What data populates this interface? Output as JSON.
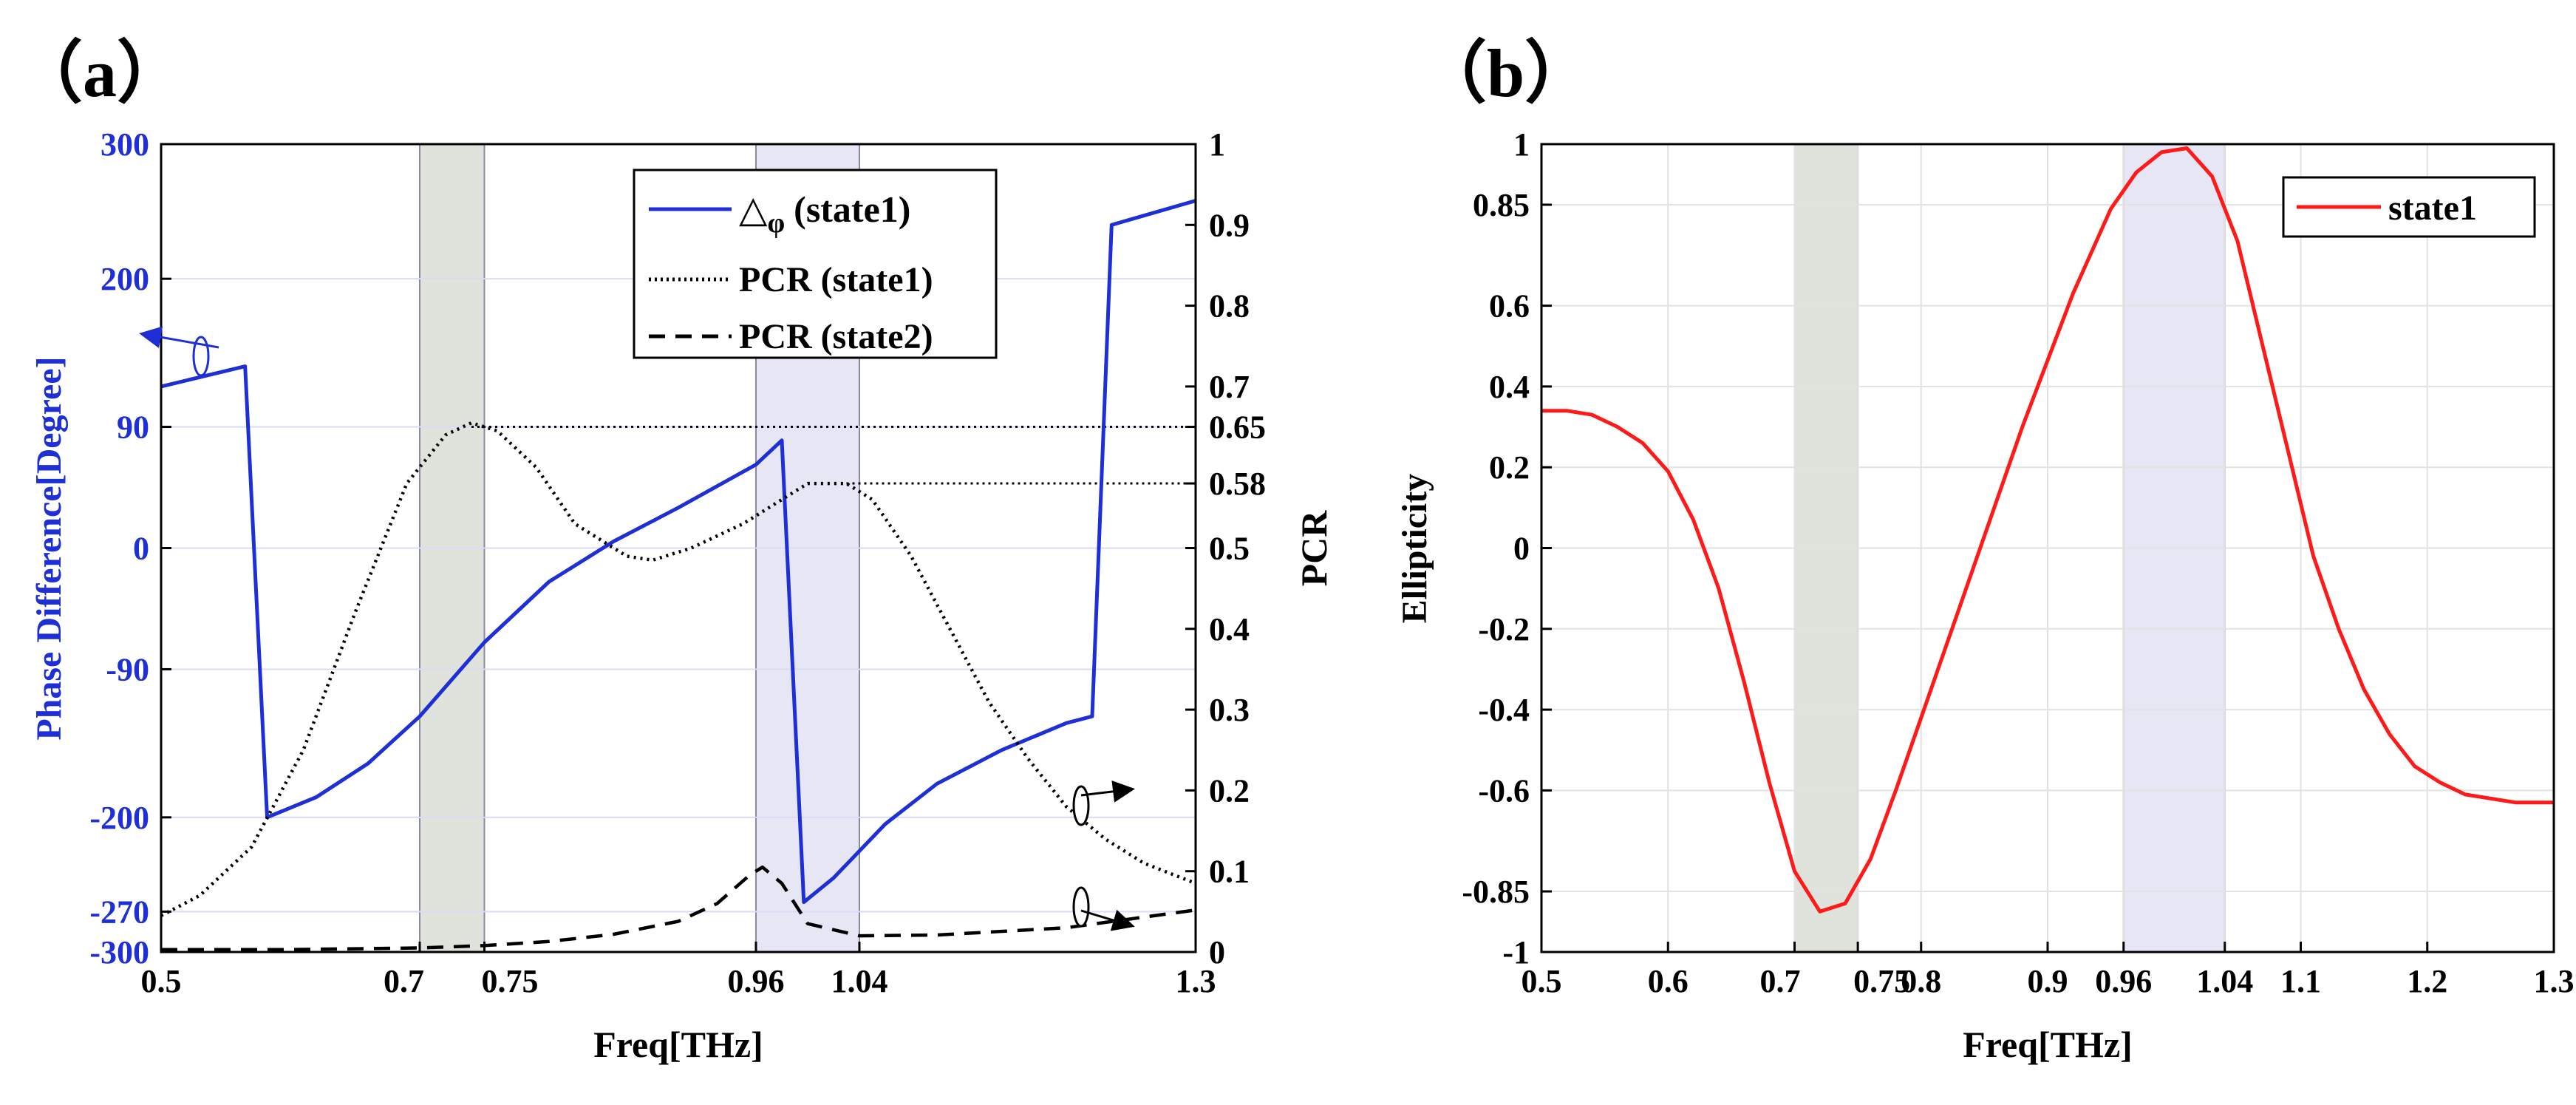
{
  "colors": {
    "blue": "#1f2fd6",
    "red": "#ff1a1a",
    "black": "#000000",
    "band_green": "#dfe3dc",
    "band_purple": "#e6e6f5",
    "grid_blue": "#d8dcf4",
    "grid_gray": "#e2e2e2"
  },
  "chart_data": [
    {
      "panel_label": "（a）",
      "type": "line",
      "xlabel": "Freq[THz]",
      "ylabel_left": "Phase Difference[Degree]",
      "ylabel_right": "PCR",
      "xlim": [
        0.5,
        1.3
      ],
      "ylim_left": [
        -300,
        300
      ],
      "ylim_right": [
        0,
        1
      ],
      "xticks": [
        "0.5",
        "0.7",
        "0.75",
        "0.96",
        "1.04",
        "1.3"
      ],
      "xtick_values": [
        0.5,
        0.7,
        0.75,
        0.96,
        1.04,
        1.3
      ],
      "yticks_left": [
        "300",
        "200",
        "90",
        "0",
        "-90",
        "-200",
        "-270",
        "-300"
      ],
      "ytick_values_left": [
        300,
        200,
        90,
        0,
        -90,
        -200,
        -270,
        -300
      ],
      "yticks_right": [
        "1",
        "0.9",
        "0.8",
        "0.7",
        "0.65",
        "0.58",
        "0.5",
        "0.4",
        "0.3",
        "0.2",
        "0.1",
        "0"
      ],
      "ytick_values_right": [
        1,
        0.9,
        0.8,
        0.7,
        0.65,
        0.58,
        0.5,
        0.4,
        0.3,
        0.2,
        0.1,
        0
      ],
      "shaded_bands": [
        {
          "x0": 0.7,
          "x1": 0.75,
          "color": "green"
        },
        {
          "x0": 0.96,
          "x1": 1.04,
          "color": "purple"
        }
      ],
      "reference_lines": [
        {
          "y_right": 0.65,
          "x0": 0.74,
          "x1": 1.3
        },
        {
          "y_right": 0.58,
          "x0": 1.03,
          "x1": 1.3
        }
      ],
      "legend": [
        "△",
        "φ",
        "(state1)",
        "PCR (state1)",
        "PCR (state2)"
      ],
      "series": [
        {
          "name": "△φ (state1)",
          "axis": "left",
          "style": "solid",
          "color": "blue",
          "x": [
            0.5,
            0.565,
            0.582,
            0.62,
            0.66,
            0.7,
            0.75,
            0.8,
            0.85,
            0.9,
            0.96,
            0.98,
            0.997,
            1.02,
            1.06,
            1.1,
            1.15,
            1.2,
            1.22,
            1.235,
            1.3
          ],
          "y": [
            120,
            135,
            -200,
            -185,
            -160,
            -125,
            -70,
            -25,
            5,
            30,
            62,
            80,
            -263,
            -245,
            -205,
            -175,
            -150,
            -130,
            -125,
            240,
            258
          ]
        },
        {
          "name": "PCR (state1)",
          "axis": "right",
          "style": "dotted",
          "color": "black",
          "x": [
            0.5,
            0.53,
            0.57,
            0.61,
            0.65,
            0.69,
            0.72,
            0.74,
            0.76,
            0.79,
            0.82,
            0.86,
            0.88,
            0.91,
            0.95,
            0.98,
            1.0,
            1.03,
            1.05,
            1.08,
            1.11,
            1.14,
            1.17,
            1.2,
            1.23,
            1.26,
            1.3
          ],
          "y": [
            0.045,
            0.07,
            0.13,
            0.25,
            0.42,
            0.58,
            0.64,
            0.655,
            0.645,
            0.6,
            0.53,
            0.49,
            0.485,
            0.5,
            0.53,
            0.56,
            0.58,
            0.58,
            0.56,
            0.49,
            0.4,
            0.31,
            0.24,
            0.18,
            0.14,
            0.11,
            0.085
          ]
        },
        {
          "name": "PCR (state2)",
          "axis": "right",
          "style": "dashed",
          "color": "black",
          "x": [
            0.5,
            0.6,
            0.7,
            0.75,
            0.8,
            0.85,
            0.9,
            0.93,
            0.955,
            0.965,
            0.98,
            1.0,
            1.04,
            1.1,
            1.2,
            1.3
          ],
          "y": [
            0.003,
            0.003,
            0.005,
            0.008,
            0.013,
            0.022,
            0.038,
            0.06,
            0.095,
            0.105,
            0.085,
            0.035,
            0.02,
            0.021,
            0.03,
            0.052
          ]
        }
      ]
    },
    {
      "panel_label": "（b）",
      "type": "line",
      "xlabel": "Freq[THz]",
      "ylabel": "Ellipticity",
      "xlim": [
        0.5,
        1.3
      ],
      "ylim": [
        -1,
        1
      ],
      "xticks": [
        "0.5",
        "0.6",
        "0.7",
        "0.75",
        "0.8",
        "0.9",
        "0.96",
        "1.04",
        "1.1",
        "1.2",
        "1.3"
      ],
      "xtick_values": [
        0.5,
        0.6,
        0.7,
        0.75,
        0.8,
        0.9,
        0.96,
        1.04,
        1.1,
        1.2,
        1.3
      ],
      "yticks": [
        "1",
        "0.85",
        "0.6",
        "0.4",
        "0.2",
        "0",
        "-0.2",
        "-0.4",
        "-0.6",
        "-0.85",
        "-1"
      ],
      "ytick_values": [
        1,
        0.85,
        0.6,
        0.4,
        0.2,
        0,
        -0.2,
        -0.4,
        -0.6,
        -0.85,
        -1
      ],
      "shaded_bands": [
        {
          "x0": 0.7,
          "x1": 0.75,
          "color": "green"
        },
        {
          "x0": 0.96,
          "x1": 1.04,
          "color": "purple"
        }
      ],
      "legend": [
        "state1"
      ],
      "series": [
        {
          "name": "state1",
          "color": "red",
          "x": [
            0.5,
            0.52,
            0.54,
            0.56,
            0.58,
            0.6,
            0.62,
            0.64,
            0.66,
            0.68,
            0.7,
            0.72,
            0.74,
            0.76,
            0.78,
            0.8,
            0.84,
            0.88,
            0.92,
            0.95,
            0.97,
            0.99,
            1.01,
            1.03,
            1.05,
            1.07,
            1.09,
            1.11,
            1.13,
            1.15,
            1.17,
            1.19,
            1.21,
            1.23,
            1.25,
            1.27,
            1.3
          ],
          "y": [
            0.34,
            0.34,
            0.33,
            0.3,
            0.26,
            0.19,
            0.07,
            -0.1,
            -0.33,
            -0.58,
            -0.8,
            -0.9,
            -0.88,
            -0.77,
            -0.6,
            -0.42,
            -0.06,
            0.3,
            0.63,
            0.84,
            0.93,
            0.98,
            0.99,
            0.92,
            0.76,
            0.5,
            0.24,
            -0.02,
            -0.2,
            -0.35,
            -0.46,
            -0.54,
            -0.58,
            -0.61,
            -0.62,
            -0.63,
            -0.63
          ]
        }
      ]
    }
  ]
}
